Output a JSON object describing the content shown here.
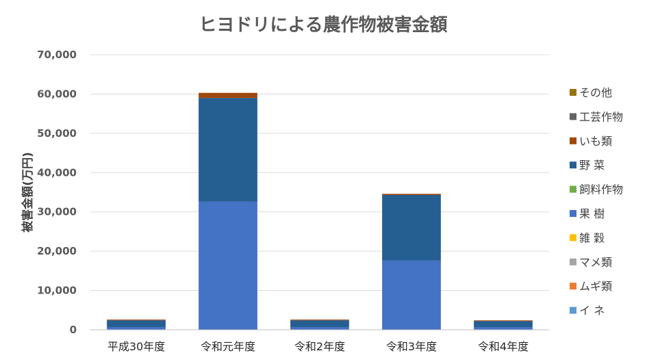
{
  "chart_data": {
    "type": "bar",
    "stacked": true,
    "title": "ヒヨドリによる農作物被害金額",
    "ylabel": "被害金額(万円)",
    "xlabel": "",
    "ylim": [
      0,
      70000
    ],
    "yticks": [
      "0",
      "10,000",
      "20,000",
      "30,000",
      "40,000",
      "50,000",
      "60,000",
      "70,000"
    ],
    "ytick_values": [
      0,
      10000,
      20000,
      30000,
      40000,
      50000,
      60000,
      70000
    ],
    "grid": true,
    "legend_position": "right",
    "categories": [
      "平成30年度",
      "令和元年度",
      "令和2年度",
      "令和3年度",
      "令和4年度"
    ],
    "series": [
      {
        "name": "イ ネ",
        "color": "#5b9bd5",
        "values": [
          0,
          0,
          0,
          0,
          0
        ]
      },
      {
        "name": "ムギ類",
        "color": "#ed7d31",
        "values": [
          0,
          0,
          0,
          0,
          0
        ]
      },
      {
        "name": "マメ類",
        "color": "#a5a5a5",
        "values": [
          0,
          0,
          0,
          0,
          0
        ]
      },
      {
        "name": "雑 穀",
        "color": "#ffc000",
        "values": [
          0,
          0,
          0,
          0,
          0
        ]
      },
      {
        "name": "果 樹",
        "color": "#4472c4",
        "values": [
          700,
          32600,
          700,
          17600,
          700
        ]
      },
      {
        "name": "飼料作物",
        "color": "#70ad47",
        "values": [
          0,
          0,
          0,
          0,
          0
        ]
      },
      {
        "name": "野 菜",
        "color": "#255e91",
        "values": [
          1700,
          26400,
          1700,
          16700,
          1500
        ]
      },
      {
        "name": "いも類",
        "color": "#9e480e",
        "values": [
          200,
          1300,
          200,
          300,
          200
        ]
      },
      {
        "name": "工芸作物",
        "color": "#636363",
        "values": [
          0,
          0,
          0,
          0,
          0
        ]
      },
      {
        "name": "その他",
        "color": "#997300",
        "values": [
          0,
          0,
          0,
          0,
          0
        ]
      }
    ]
  }
}
